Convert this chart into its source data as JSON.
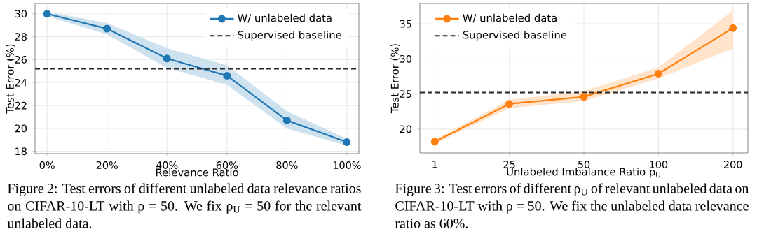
{
  "chart_data": [
    {
      "type": "line",
      "xlabel": "Relevance Ratio",
      "ylabel": "Test Error (%)",
      "categories": [
        "0%",
        "20%",
        "40%",
        "60%",
        "80%",
        "100%"
      ],
      "series": [
        {
          "name": "W/ unlabeled data",
          "color": "#1f77b4",
          "values": [
            30.0,
            28.7,
            26.1,
            24.6,
            20.7,
            18.8
          ],
          "lower": [
            29.8,
            28.2,
            25.3,
            23.8,
            20.0,
            18.5
          ],
          "upper": [
            30.2,
            29.2,
            27.0,
            25.5,
            21.5,
            19.1
          ]
        }
      ],
      "ref_lines": [
        {
          "axis": "y",
          "value": 25.2,
          "label": "Supervised baseline",
          "color": "#262626",
          "line_style": "dashed"
        }
      ],
      "ylim": [
        17.8,
        30.9
      ],
      "yticks": [
        18,
        20,
        22,
        24,
        26,
        28,
        30
      ],
      "grid": true,
      "legend": "top right",
      "marker": "circle",
      "line_style": "solid",
      "annotations": [
        "Figure 2: Test errors of different unlabeled data relevance ratios on CIFAR-10-LT with ρ = 50. We fix ρ$_{U}$ = 50 for the relevant unlabeled data."
      ]
    },
    {
      "type": "line",
      "xlabel": "Unlabeled Imbalance Ratio ρ$_{U}$",
      "ylabel": "Test Error (%)",
      "categories": [
        "1",
        "25",
        "50",
        "100",
        "200"
      ],
      "series": [
        {
          "name": "W/ unlabeled data",
          "color": "#ff7f0e",
          "values": [
            18.2,
            23.6,
            24.6,
            27.9,
            34.4
          ],
          "lower": [
            17.9,
            23.0,
            24.0,
            27.2,
            31.5
          ],
          "upper": [
            18.5,
            24.2,
            25.4,
            28.8,
            36.9
          ]
        }
      ],
      "ref_lines": [
        {
          "axis": "y",
          "value": 25.2,
          "label": "Supervised baseline",
          "color": "#262626",
          "line_style": "dashed"
        }
      ],
      "ylim": [
        16.6,
        37.9
      ],
      "yticks": [
        20,
        25,
        30,
        35
      ],
      "grid": true,
      "legend": "top left",
      "marker": "circle",
      "line_style": "solid",
      "annotations": [
        "Figure 3: Test errors of different ρ$_{U}$ of relevant unlabeled data on CIFAR-10-LT with ρ = 50. We fix the unlabeled data relevance ratio as 60%."
      ]
    }
  ]
}
